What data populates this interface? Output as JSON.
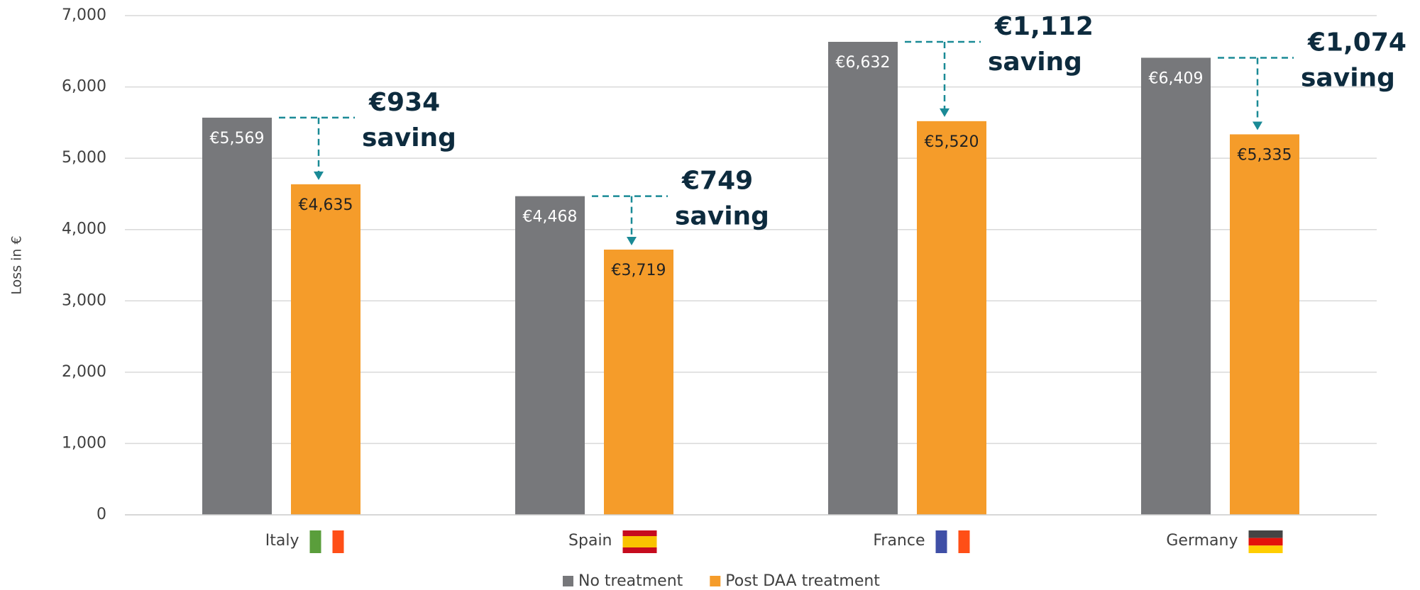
{
  "chart_data": {
    "type": "bar",
    "ylabel": "Loss in €",
    "categories": [
      "Italy",
      "Spain",
      "France",
      "Germany"
    ],
    "series": [
      {
        "name": "No treatment",
        "color": "#77787b",
        "values": [
          5569,
          4468,
          6632,
          6409
        ],
        "value_labels": [
          "€5,569",
          "€4,468",
          "€6,632",
          "€6,409"
        ]
      },
      {
        "name": "Post DAA treatment",
        "color": "#f59c2a",
        "values": [
          4635,
          3719,
          5520,
          5335
        ],
        "value_labels": [
          "€4,635",
          "€3,719",
          "€5,520",
          "€5,335"
        ]
      }
    ],
    "annotations": [
      {
        "amount": "€934",
        "text": "saving"
      },
      {
        "amount": "€749",
        "text": "saving"
      },
      {
        "amount": "€1,112",
        "text": "saving"
      },
      {
        "amount": "€1,074",
        "text": "saving"
      }
    ],
    "ylim": [
      0,
      7000
    ],
    "yticks": [
      0,
      {
        "value": 1000,
        "label": "1,000"
      },
      {
        "value": 2000,
        "label": "2,000"
      },
      {
        "value": 3000,
        "label": "3,000"
      },
      {
        "value": 4000,
        "label": "4,000"
      },
      {
        "value": 5000,
        "label": "5,000"
      },
      {
        "value": 6000,
        "label": "6,000"
      },
      {
        "value": 7000,
        "label": "7,000"
      }
    ],
    "grid": true,
    "legend": "bottom"
  }
}
